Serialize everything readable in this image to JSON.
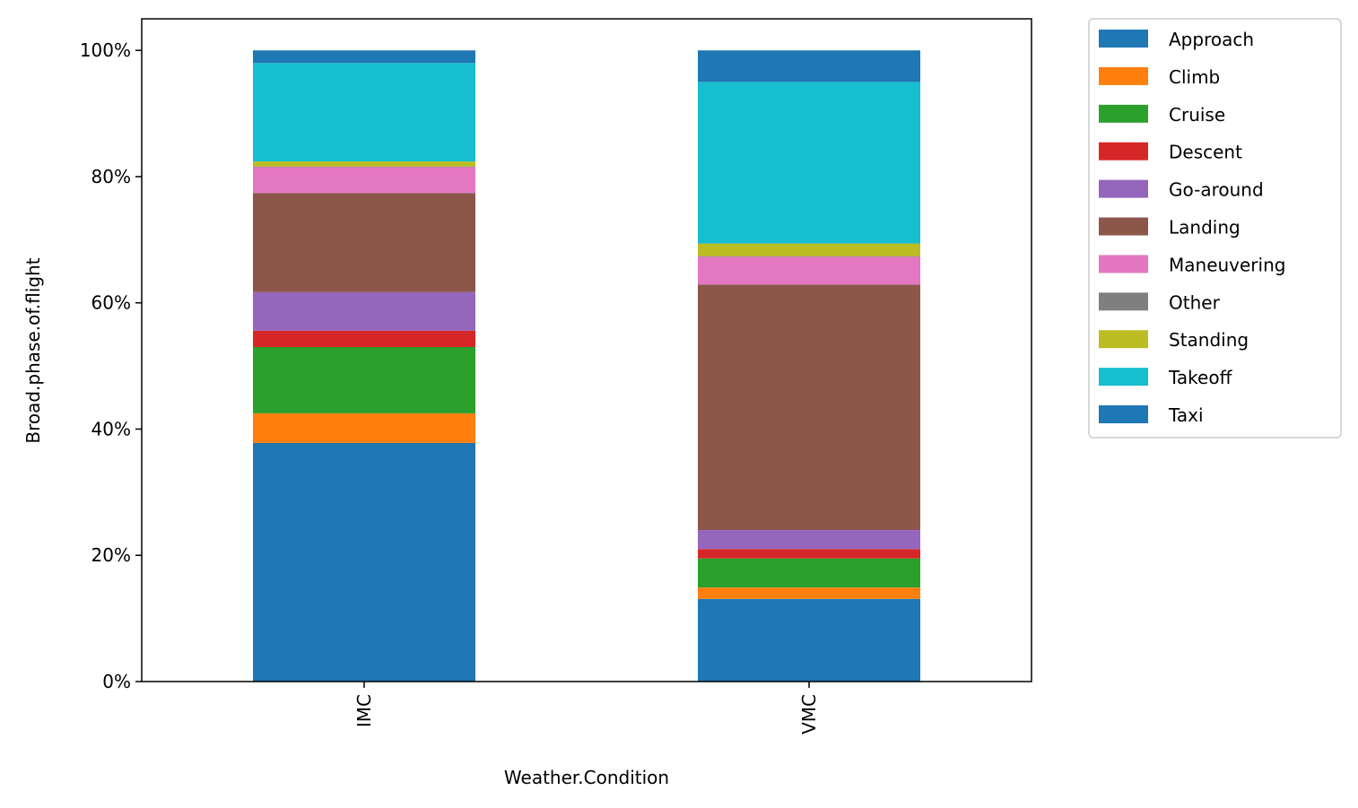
{
  "chart_data": {
    "type": "bar",
    "stacked": true,
    "categories": [
      "IMC",
      "VMC"
    ],
    "xlabel": "Weather.Condition",
    "ylabel": "Broad.phase.of.flight",
    "ylim": [
      0,
      1.05
    ],
    "yticks": [
      0,
      0.2,
      0.4,
      0.6,
      0.8,
      1.0
    ],
    "ytick_labels": [
      "0%",
      "20%",
      "40%",
      "60%",
      "80%",
      "100%"
    ],
    "grid": false,
    "legend_position": "outside-top-right",
    "series": [
      {
        "name": "Approach",
        "color": "#1f77b4",
        "values": [
          0.378,
          0.131
        ]
      },
      {
        "name": "Climb",
        "color": "#ff7f0e",
        "values": [
          0.047,
          0.018
        ]
      },
      {
        "name": "Cruise",
        "color": "#2ca02c",
        "values": [
          0.105,
          0.046
        ]
      },
      {
        "name": "Descent",
        "color": "#d62728",
        "values": [
          0.026,
          0.015
        ]
      },
      {
        "name": "Go-around",
        "color": "#9467bd",
        "values": [
          0.061,
          0.03
        ]
      },
      {
        "name": "Landing",
        "color": "#8c564b",
        "values": [
          0.157,
          0.389
        ]
      },
      {
        "name": "Maneuvering",
        "color": "#e377c2",
        "values": [
          0.041,
          0.044
        ]
      },
      {
        "name": "Other",
        "color": "#7f7f7f",
        "values": [
          0.001,
          0.001
        ]
      },
      {
        "name": "Standing",
        "color": "#bcbd22",
        "values": [
          0.008,
          0.02
        ]
      },
      {
        "name": "Takeoff",
        "color": "#17becf",
        "values": [
          0.156,
          0.256
        ]
      },
      {
        "name": "Taxi",
        "color": "#1f77b4",
        "values": [
          0.02,
          0.05
        ]
      }
    ]
  }
}
